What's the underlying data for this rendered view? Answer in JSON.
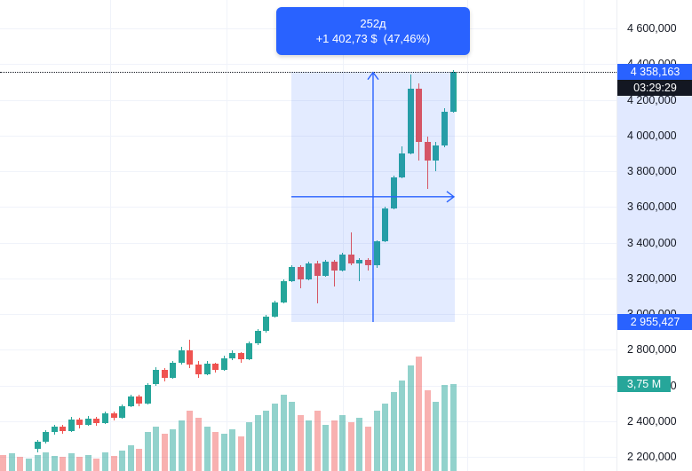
{
  "tooltip": {
    "line1": "252д",
    "change": "+1 402,73 $",
    "pct": "(47,46%)"
  },
  "price_scale": {
    "last_price_label": "4 358,163",
    "countdown_label": "03:29:29",
    "range_price_label": "2 955,427",
    "volume_value_label": "3,75 M"
  },
  "colors": {
    "up": "#26a69a",
    "down": "#ef5350",
    "vol_up": "rgba(38,166,154,0.5)",
    "vol_down": "rgba(239,83,80,0.45)",
    "accent_blue": "#2962ff",
    "selection_fill": "rgba(41,98,255,0.13)",
    "axis_highlight": "rgba(41,98,255,0.14)",
    "countdown_bg": "#131722",
    "volume_label_bg": "#26a69a",
    "grid": "#f0f3fa",
    "axis_text": "#131722"
  },
  "chart_data": {
    "type": "candlestick+volume",
    "grid": "on",
    "price_axis": {
      "min": 2200,
      "max": 4600,
      "tick_step": 200,
      "ticks": [
        {
          "value": 4600,
          "label": "4 600,000"
        },
        {
          "value": 4400,
          "label": "4 400,000"
        },
        {
          "value": 4200,
          "label": "4 200,000"
        },
        {
          "value": 4000,
          "label": "4 000,000"
        },
        {
          "value": 3800,
          "label": "3 800,000"
        },
        {
          "value": 3600,
          "label": "3 600,000"
        },
        {
          "value": 3400,
          "label": "3 400,000"
        },
        {
          "value": 3200,
          "label": "3 200,000"
        },
        {
          "value": 3000,
          "label": "3 000,000"
        },
        {
          "value": 2800,
          "label": "2 800,000"
        },
        {
          "value": 2600,
          "label": "2 600,000"
        },
        {
          "value": 2400,
          "label": "2 400,000"
        },
        {
          "value": 2200,
          "label": "2 200,000"
        }
      ]
    },
    "last_price": 4358.163,
    "volume_unit": "M",
    "last_volume": 3.75,
    "measurement": {
      "duration_label": "252д",
      "change_value": 1402.73,
      "change_pct": 47.46,
      "start_price": 2955.427,
      "end_price": 4358.157,
      "start_index": 30
    },
    "candles": [
      [
        2245,
        2295,
        2225,
        2285
      ],
      [
        2285,
        2350,
        2275,
        2340
      ],
      [
        2340,
        2380,
        2325,
        2370
      ],
      [
        2370,
        2380,
        2330,
        2345
      ],
      [
        2345,
        2425,
        2340,
        2410
      ],
      [
        2410,
        2420,
        2360,
        2378
      ],
      [
        2378,
        2430,
        2372,
        2415
      ],
      [
        2415,
        2425,
        2372,
        2388
      ],
      [
        2388,
        2455,
        2382,
        2445
      ],
      [
        2445,
        2455,
        2402,
        2418
      ],
      [
        2418,
        2495,
        2412,
        2485
      ],
      [
        2485,
        2550,
        2478,
        2540
      ],
      [
        2540,
        2550,
        2482,
        2498
      ],
      [
        2498,
        2615,
        2492,
        2605
      ],
      [
        2605,
        2700,
        2598,
        2685
      ],
      [
        2685,
        2695,
        2620,
        2642
      ],
      [
        2642,
        2735,
        2636,
        2725
      ],
      [
        2725,
        2815,
        2718,
        2798
      ],
      [
        2798,
        2855,
        2698,
        2718
      ],
      [
        2718,
        2735,
        2642,
        2662
      ],
      [
        2662,
        2735,
        2656,
        2722
      ],
      [
        2722,
        2728,
        2672,
        2688
      ],
      [
        2688,
        2765,
        2682,
        2752
      ],
      [
        2752,
        2795,
        2742,
        2782
      ],
      [
        2782,
        2788,
        2728,
        2746
      ],
      [
        2746,
        2845,
        2740,
        2835
      ],
      [
        2835,
        2915,
        2828,
        2905
      ],
      [
        2905,
        2995,
        2898,
        2985
      ],
      [
        2985,
        3075,
        2978,
        3065
      ],
      [
        3065,
        3195,
        3058,
        3185
      ],
      [
        3185,
        3275,
        3178,
        3262
      ],
      [
        3262,
        3272,
        3142,
        3192
      ],
      [
        3192,
        3295,
        3186,
        3282
      ],
      [
        3282,
        3298,
        3062,
        3212
      ],
      [
        3212,
        3305,
        3206,
        3292
      ],
      [
        3292,
        3302,
        3152,
        3242
      ],
      [
        3242,
        3345,
        3236,
        3332
      ],
      [
        3332,
        3455,
        3272,
        3282
      ],
      [
        3282,
        3312,
        3182,
        3302
      ],
      [
        3302,
        3312,
        3242,
        3272
      ],
      [
        3272,
        3415,
        3258,
        3408
      ],
      [
        3408,
        3600,
        3402,
        3592
      ],
      [
        3592,
        3775,
        3586,
        3766
      ],
      [
        3766,
        3940,
        3760,
        3900
      ],
      [
        3900,
        4340,
        3892,
        4262
      ],
      [
        4262,
        4292,
        3862,
        3962
      ],
      [
        3962,
        3992,
        3702,
        3858
      ],
      [
        3858,
        3962,
        3802,
        3942
      ],
      [
        3942,
        4152,
        3936,
        4132
      ],
      [
        4132,
        4368,
        4126,
        4358.163
      ]
    ],
    "volumes": [
      0.7,
      0.8,
      0.65,
      0.6,
      0.75,
      0.6,
      0.7,
      0.55,
      0.8,
      0.65,
      0.9,
      1.1,
      0.95,
      1.7,
      1.9,
      1.6,
      1.8,
      2.2,
      2.6,
      2.3,
      1.9,
      1.7,
      1.6,
      1.8,
      1.5,
      2.1,
      2.4,
      2.6,
      2.9,
      3.3,
      3.0,
      2.4,
      2.2,
      2.6,
      2.0,
      2.2,
      2.4,
      2.1,
      2.3,
      1.9,
      2.6,
      2.9,
      3.4,
      3.9,
      4.55,
      4.95,
      3.5,
      3.0,
      3.7,
      3.75
    ],
    "lead_volumes": [
      {
        "value": 0.7,
        "dir": "down"
      },
      {
        "value": 0.75,
        "dir": "up"
      },
      {
        "value": 0.6,
        "dir": "down"
      },
      {
        "value": 0.55,
        "dir": "up"
      }
    ]
  }
}
